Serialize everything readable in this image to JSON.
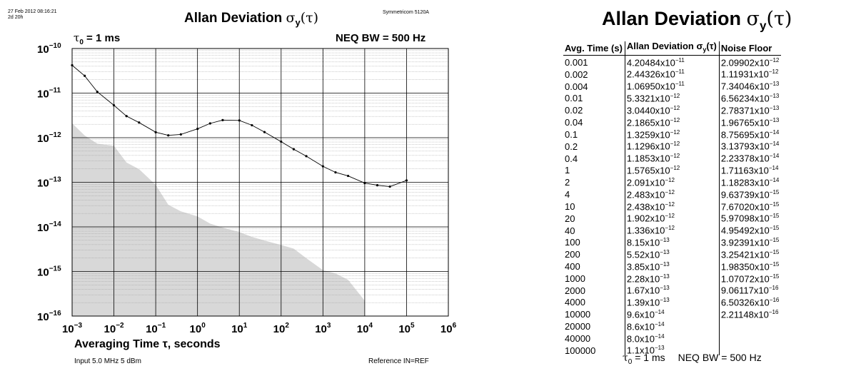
{
  "header": {
    "timestamp": "27 Feb 2012 08:16:21",
    "uptime": "2d 20h",
    "instrument": "Symmetricom 5120A",
    "title_prefix": "Allan Deviation ",
    "sigma": "σ",
    "sub_y": "y",
    "paren_tau": "(τ)"
  },
  "plot_info": {
    "tau0_label": "τ",
    "tau0_sub": "0",
    "tau0_value": " = 1 ms",
    "neq_bw": "NEQ BW = 500 Hz"
  },
  "footer": {
    "input": "Input 5.0 MHz 5 dBm",
    "reference": "Reference IN=REF"
  },
  "chart_data": {
    "type": "line",
    "title": "Allan Deviation σy(τ)",
    "xlabel": "Averaging Time τ, seconds",
    "ylabel": "",
    "xscale": "log",
    "yscale": "log",
    "xlim": [
      0.001,
      1000000
    ],
    "ylim": [
      1e-16,
      1e-10
    ],
    "x_tick_mantissa": "10",
    "x_tick_exponents": [
      "-3",
      "-2",
      "-1",
      "0",
      "1",
      "2",
      "3",
      "4",
      "5",
      "6"
    ],
    "y_tick_exponents": [
      "-10",
      "-11",
      "-12",
      "-13",
      "-14",
      "-15",
      "-16"
    ],
    "grid": true,
    "series": [
      {
        "name": "Allan Deviation",
        "x": [
          0.001,
          0.002,
          0.004,
          0.01,
          0.02,
          0.04,
          0.1,
          0.2,
          0.4,
          1,
          2,
          4,
          10,
          20,
          40,
          100,
          200,
          400,
          1000,
          2000,
          4000,
          10000,
          20000,
          40000,
          100000
        ],
        "y": [
          4.20484e-11,
          2.44326e-11,
          1.0695e-11,
          5.3321e-12,
          3.044e-12,
          2.1865e-12,
          1.3259e-12,
          1.1296e-12,
          1.1853e-12,
          1.5765e-12,
          2.091e-12,
          2.483e-12,
          2.438e-12,
          1.902e-12,
          1.336e-12,
          8.15e-13,
          5.52e-13,
          3.85e-13,
          2.28e-13,
          1.67e-13,
          1.39e-13,
          9.6e-14,
          8.6e-14,
          8e-14,
          1.1e-13
        ],
        "color": "#000000"
      },
      {
        "name": "Noise Floor",
        "x": [
          0.001,
          0.002,
          0.004,
          0.01,
          0.02,
          0.04,
          0.1,
          0.2,
          0.4,
          1,
          2,
          4,
          10,
          20,
          40,
          100,
          200,
          400,
          1000,
          2000,
          4000,
          10000
        ],
        "y": [
          2.09902e-12,
          1.11931e-12,
          7.34046e-13,
          6.56234e-13,
          2.78371e-13,
          1.96765e-13,
          8.75695e-14,
          3.13793e-14,
          2.23378e-14,
          1.71163e-14,
          1.18283e-14,
          9.63739e-15,
          7.6702e-15,
          5.97098e-15,
          4.95492e-15,
          3.92391e-15,
          3.25421e-15,
          1.9835e-15,
          1.07072e-15,
          9.06117e-16,
          6.50326e-16,
          2.21148e-16
        ],
        "color": "#d8d8d8"
      }
    ]
  },
  "table": {
    "title_prefix": "Allan Deviation ",
    "title_sigma": "σ",
    "title_sub": "y",
    "title_paren": "(τ)",
    "col1": "Avg. Time (s)",
    "col2_prefix": "Allan Deviation σ",
    "col2_sub": "y",
    "col2_paren": "(τ)",
    "col3": "Noise Floor",
    "rows": [
      {
        "t": "0.001",
        "a": "4.20484",
        "ae": "-11",
        "n": "2.09902",
        "ne": "-12"
      },
      {
        "t": "0.002",
        "a": "2.44326",
        "ae": "-11",
        "n": "1.11931",
        "ne": "-12"
      },
      {
        "t": "0.004",
        "a": "1.06950",
        "ae": "-11",
        "n": "7.34046",
        "ne": "-13"
      },
      {
        "t": "0.01",
        "a": "5.3321",
        "ae": "-12",
        "n": "6.56234",
        "ne": "-13"
      },
      {
        "t": "0.02",
        "a": "3.0440",
        "ae": "-12",
        "n": "2.78371",
        "ne": "-13"
      },
      {
        "t": "0.04",
        "a": "2.1865",
        "ae": "-12",
        "n": "1.96765",
        "ne": "-13"
      },
      {
        "t": "0.1",
        "a": "1.3259",
        "ae": "-12",
        "n": "8.75695",
        "ne": "-14"
      },
      {
        "t": "0.2",
        "a": "1.1296",
        "ae": "-12",
        "n": "3.13793",
        "ne": "-14"
      },
      {
        "t": "0.4",
        "a": "1.1853",
        "ae": "-12",
        "n": "2.23378",
        "ne": "-14"
      },
      {
        "t": "1",
        "a": "1.5765",
        "ae": "-12",
        "n": "1.71163",
        "ne": "-14"
      },
      {
        "t": "2",
        "a": "2.091",
        "ae": "-12",
        "n": "1.18283",
        "ne": "-14"
      },
      {
        "t": "4",
        "a": "2.483",
        "ae": "-12",
        "n": "9.63739",
        "ne": "-15"
      },
      {
        "t": "10",
        "a": "2.438",
        "ae": "-12",
        "n": "7.67020",
        "ne": "-15"
      },
      {
        "t": "20",
        "a": "1.902",
        "ae": "-12",
        "n": "5.97098",
        "ne": "-15"
      },
      {
        "t": "40",
        "a": "1.336",
        "ae": "-12",
        "n": "4.95492",
        "ne": "-15"
      },
      {
        "t": "100",
        "a": "8.15",
        "ae": "-13",
        "n": "3.92391",
        "ne": "-15"
      },
      {
        "t": "200",
        "a": "5.52",
        "ae": "-13",
        "n": "3.25421",
        "ne": "-15"
      },
      {
        "t": "400",
        "a": "3.85",
        "ae": "-13",
        "n": "1.98350",
        "ne": "-15"
      },
      {
        "t": "1000",
        "a": "2.28",
        "ae": "-13",
        "n": "1.07072",
        "ne": "-15"
      },
      {
        "t": "2000",
        "a": "1.67",
        "ae": "-13",
        "n": "9.06117",
        "ne": "-16"
      },
      {
        "t": "4000",
        "a": "1.39",
        "ae": "-13",
        "n": "6.50326",
        "ne": "-16"
      },
      {
        "t": "10000",
        "a": "9.6",
        "ae": "-14",
        "n": "2.21148",
        "ne": "-16"
      },
      {
        "t": "20000",
        "a": "8.6",
        "ae": "-14",
        "n": "",
        "ne": ""
      },
      {
        "t": "40000",
        "a": "8.0",
        "ae": "-14",
        "n": "",
        "ne": ""
      },
      {
        "t": "100000",
        "a": "1.1",
        "ae": "-13",
        "n": "",
        "ne": ""
      }
    ],
    "mult": "x10",
    "foot_tau": "τ",
    "foot_sub": "0",
    "foot_value": " = 1 ms",
    "foot_bw": "NEQ BW = 500 Hz"
  }
}
